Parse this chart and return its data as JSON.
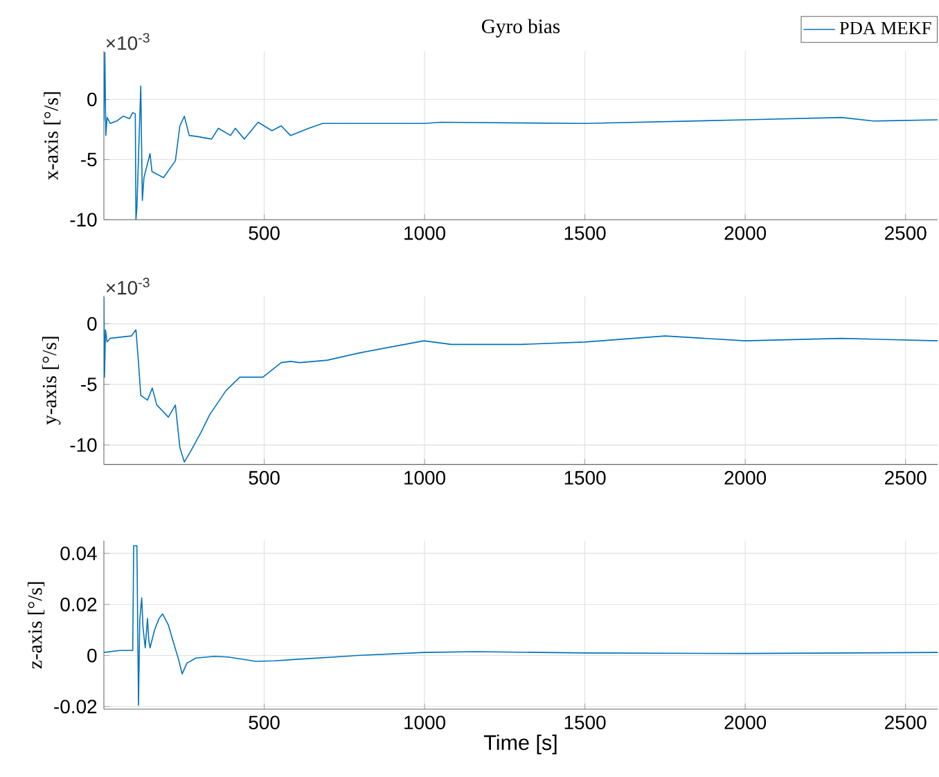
{
  "chart_data": [
    {
      "type": "line",
      "title": "Gyro bias",
      "ylabel": "x-axis [°/s]",
      "annotations": [
        "×10$^{-3}$"
      ],
      "legend": "top right",
      "grid": true,
      "xlim": [
        0,
        2600
      ],
      "xticks": [
        500,
        1000,
        1500,
        2000,
        2500
      ],
      "ylim": [
        -10,
        4
      ],
      "yticks": [
        -10,
        -5,
        0
      ],
      "series": [
        {
          "name": "PDA MEKF",
          "color": "#0072bd",
          "x": [
            0,
            3,
            6,
            10,
            20,
            40,
            60,
            80,
            90,
            98,
            100,
            103,
            115,
            120,
            125,
            144,
            150,
            186,
            223,
            237,
            251,
            266,
            295,
            336,
            357,
            395,
            410,
            438,
            481,
            524,
            553,
            582,
            639,
            682,
            797,
            1000,
            1050,
            1500,
            2000,
            2300,
            2400,
            2600
          ],
          "values": [
            -1.8,
            3.9,
            -3.0,
            -1.5,
            -2.0,
            -1.8,
            -1.4,
            -1.6,
            -1.1,
            -1.2,
            -10,
            -9,
            1.1,
            -8.4,
            -6.5,
            -4.5,
            -6.0,
            -6.5,
            -5.1,
            -2.2,
            -1.4,
            -3.0,
            -3.1,
            -3.3,
            -2.4,
            -3.0,
            -2.4,
            -3.3,
            -1.9,
            -2.6,
            -2.2,
            -3.0,
            -2.4,
            -2.0,
            -2.0,
            -2.0,
            -1.9,
            -2.0,
            -1.7,
            -1.5,
            -1.8,
            -1.7
          ]
        }
      ]
    },
    {
      "type": "line",
      "ylabel": "y-axis [°/s]",
      "annotations": [
        "×10$^{-3}$"
      ],
      "grid": true,
      "xlim": [
        0,
        2600
      ],
      "xticks": [
        500,
        1000,
        1500,
        2000,
        2500
      ],
      "ylim": [
        -11.6,
        2.3
      ],
      "yticks": [
        -10,
        -5,
        0
      ],
      "series": [
        {
          "color": "#0072bd",
          "x": [
            0,
            2,
            5,
            10,
            20,
            50,
            86,
            100,
            108,
            115,
            136,
            151,
            165,
            187,
            201,
            223,
            237,
            251,
            273,
            302,
            330,
            381,
            424,
            496,
            553,
            582,
            611,
            697,
            797,
            998,
            1084,
            1300,
            1500,
            1750,
            2000,
            2300,
            2600
          ],
          "values": [
            2.2,
            -4.4,
            -0.5,
            -1.5,
            -1.2,
            -1.1,
            -1.0,
            -0.5,
            -3.2,
            -5.9,
            -6.3,
            -5.3,
            -6.7,
            -7.3,
            -7.7,
            -6.7,
            -10.2,
            -11.4,
            -10.4,
            -9.0,
            -7.5,
            -5.5,
            -4.4,
            -4.4,
            -3.2,
            -3.1,
            -3.2,
            -3.0,
            -2.4,
            -1.4,
            -1.7,
            -1.7,
            -1.5,
            -1.0,
            -1.4,
            -1.2,
            -1.4
          ]
        }
      ]
    },
    {
      "type": "line",
      "xlabel": "Time [s]",
      "ylabel": "z-axis [°/s]",
      "grid": true,
      "xlim": [
        0,
        2600
      ],
      "xticks": [
        500,
        1000,
        1500,
        2000,
        2500
      ],
      "ylim": [
        -0.021,
        0.045
      ],
      "yticks": [
        -0.02,
        0,
        0.02,
        0.04
      ],
      "series": [
        {
          "color": "#0072bd",
          "x": [
            0,
            50,
            90,
            93,
            103,
            108,
            112,
            118,
            122,
            129,
            136,
            140,
            144,
            158,
            172,
            183,
            201,
            215,
            234,
            244,
            259,
            287,
            345,
            388,
            474,
            532,
            600,
            790,
            1000,
            1162,
            1500,
            2000,
            2600
          ],
          "values": [
            0.0012,
            0.002,
            0.002,
            0.043,
            0.043,
            -0.0195,
            0.014,
            0.0226,
            0.011,
            0.003,
            0.0145,
            0.006,
            0.003,
            0.01,
            0.0145,
            0.0163,
            0.012,
            0.006,
            -0.002,
            -0.0072,
            -0.003,
            -0.001,
            -0.0003,
            -0.0006,
            -0.0023,
            -0.0021,
            -0.0015,
            0.0,
            0.0012,
            0.0015,
            0.001,
            0.0008,
            0.0012
          ]
        }
      ]
    }
  ]
}
